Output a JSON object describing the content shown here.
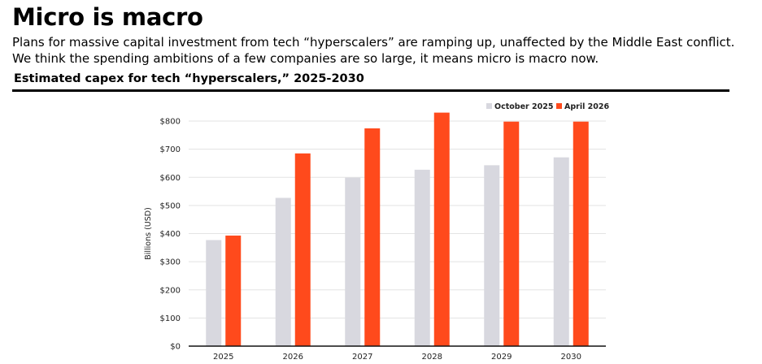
{
  "header": {
    "title": "Micro is macro",
    "subtitle": "Plans for massive capital investment from tech “hyperscalers” are ramping up, unaffected by the Middle East conflict. We think the spending ambitions of a few companies are so large, it means micro is macro now.",
    "chart_heading": "Estimated capex for tech “hyperscalers,” 2025-2030"
  },
  "chart_data": {
    "type": "bar",
    "categories": [
      "2025",
      "2026",
      "2027",
      "2028",
      "2029",
      "2030"
    ],
    "series": [
      {
        "name": "October 2025",
        "color": "#d8d8df",
        "values": [
          377,
          527,
          599,
          627,
          643,
          671
        ]
      },
      {
        "name": "April 2026",
        "color": "#ff4a1c",
        "values": [
          393,
          685,
          774,
          830,
          798,
          798
        ]
      }
    ],
    "ylabel": "Billions (USD)",
    "ylim": [
      0,
      800
    ],
    "yticks": [
      0,
      100,
      200,
      300,
      400,
      500,
      600,
      700,
      800
    ],
    "ytick_labels": [
      "$0",
      "$100",
      "$200",
      "$300",
      "$400",
      "$500",
      "$600",
      "$700",
      "$800"
    ],
    "grid": true,
    "legend_position": "top-right"
  }
}
